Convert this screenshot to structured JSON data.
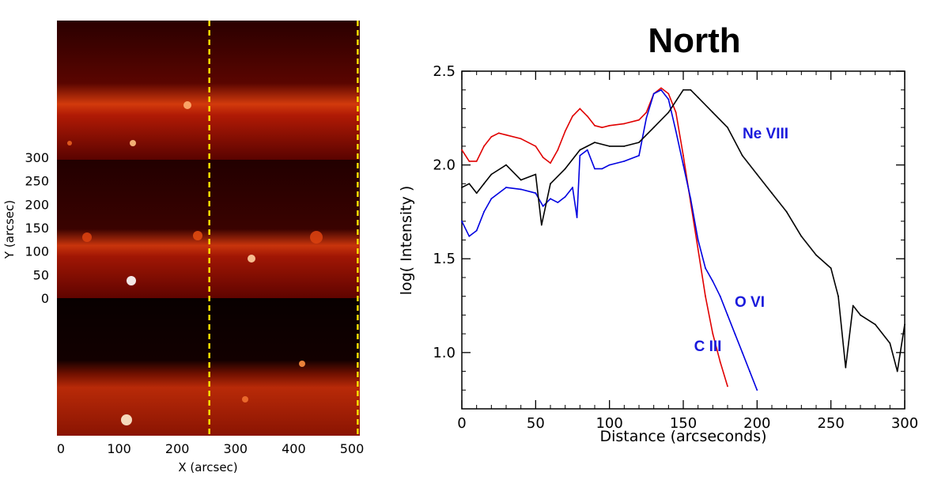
{
  "left_panel": {
    "xlabel": "X (arcsec)",
    "ylabel": "Y (arcsec)",
    "x_ticks": [
      "0",
      "100",
      "200",
      "300",
      "400",
      "500"
    ],
    "y_ticks": [
      "0",
      "50",
      "100",
      "150",
      "200",
      "250",
      "300"
    ],
    "cut_positions_x": [
      255,
      510
    ],
    "cut_color": "#ffe000",
    "colormap": "hot"
  },
  "chart_data": {
    "type": "line",
    "title": "North",
    "xlabel": "Distance (arcseconds)",
    "ylabel": "log( Intensity )",
    "xlim": [
      0,
      300
    ],
    "ylim": [
      0.7,
      2.5
    ],
    "x_ticks": [
      "0",
      "50",
      "100",
      "150",
      "200",
      "250",
      "300"
    ],
    "y_ticks": [
      "1.0",
      "1.5",
      "2.0",
      "2.5"
    ],
    "grid": false,
    "series": [
      {
        "name": "C III",
        "color": "#e00000",
        "x": [
          0,
          5,
          10,
          15,
          20,
          25,
          30,
          40,
          50,
          55,
          60,
          65,
          70,
          75,
          80,
          85,
          90,
          95,
          100,
          110,
          120,
          125,
          130,
          135,
          140,
          145,
          150,
          155,
          160,
          165,
          170,
          175,
          180
        ],
        "y": [
          2.08,
          2.02,
          2.02,
          2.1,
          2.15,
          2.17,
          2.16,
          2.14,
          2.1,
          2.04,
          2.01,
          2.08,
          2.18,
          2.26,
          2.3,
          2.26,
          2.21,
          2.2,
          2.21,
          2.22,
          2.24,
          2.28,
          2.38,
          2.41,
          2.38,
          2.28,
          2.05,
          1.8,
          1.55,
          1.3,
          1.1,
          0.95,
          0.82
        ]
      },
      {
        "name": "O VI",
        "color": "#0000e0",
        "x": [
          0,
          5,
          10,
          15,
          20,
          30,
          40,
          50,
          55,
          60,
          65,
          70,
          75,
          78,
          80,
          85,
          90,
          95,
          100,
          110,
          120,
          125,
          130,
          135,
          140,
          145,
          150,
          155,
          160,
          165,
          170,
          175,
          180,
          185,
          190,
          195,
          200
        ],
        "y": [
          1.7,
          1.62,
          1.65,
          1.75,
          1.82,
          1.88,
          1.87,
          1.85,
          1.78,
          1.82,
          1.8,
          1.83,
          1.88,
          1.72,
          2.05,
          2.08,
          1.98,
          1.98,
          2.0,
          2.02,
          2.05,
          2.25,
          2.38,
          2.4,
          2.35,
          2.18,
          2.0,
          1.82,
          1.6,
          1.45,
          1.38,
          1.3,
          1.2,
          1.1,
          1.0,
          0.9,
          0.8
        ]
      },
      {
        "name": "Ne VIII",
        "color": "#000000",
        "x": [
          0,
          5,
          10,
          15,
          20,
          30,
          40,
          50,
          54,
          60,
          70,
          80,
          90,
          100,
          110,
          120,
          130,
          140,
          150,
          155,
          160,
          170,
          180,
          190,
          200,
          210,
          220,
          230,
          240,
          250,
          255,
          260,
          265,
          270,
          280,
          290,
          295,
          300
        ],
        "y": [
          1.88,
          1.9,
          1.85,
          1.9,
          1.95,
          2.0,
          1.92,
          1.95,
          1.68,
          1.9,
          1.98,
          2.08,
          2.12,
          2.1,
          2.1,
          2.12,
          2.2,
          2.28,
          2.4,
          2.4,
          2.36,
          2.28,
          2.2,
          2.05,
          1.95,
          1.85,
          1.75,
          1.62,
          1.52,
          1.45,
          1.3,
          0.92,
          1.25,
          1.2,
          1.15,
          1.05,
          0.9,
          1.15
        ]
      }
    ]
  }
}
